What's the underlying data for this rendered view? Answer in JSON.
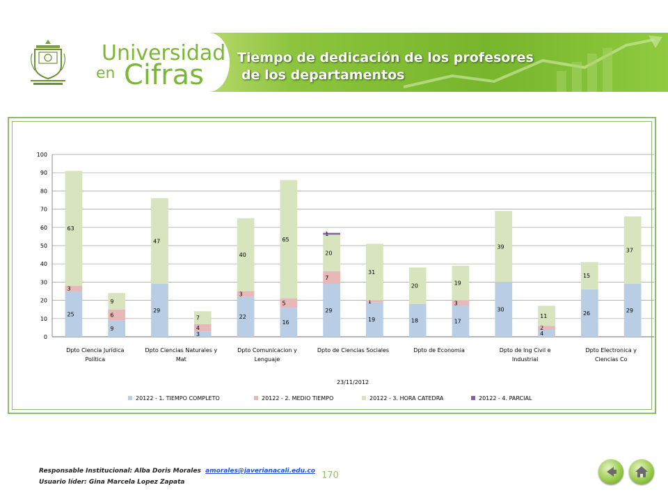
{
  "header": {
    "brand_line1": "Universidad",
    "brand_en": "en",
    "brand_cifras": "Cifras",
    "title_line1": "Tiempo de dedicación de los profesores",
    "title_line2": "de los departamentos"
  },
  "colors": {
    "tiempo_completo": "#b9cde5",
    "medio_tiempo": "#e6b9b8",
    "hora_catedra": "#d7e4bd",
    "parcial": "#8064a2",
    "banner_green": "#7ab833",
    "frame_green": "#8cbc6a"
  },
  "chart_data": {
    "type": "bar",
    "stacked": true,
    "title": "",
    "xlabel": "23/11/2012",
    "ylabel": "",
    "ylim": [
      0,
      100
    ],
    "yticks": [
      0,
      10,
      20,
      30,
      40,
      50,
      60,
      70,
      80,
      90,
      100
    ],
    "grid": true,
    "legend_position": "bottom",
    "category_label_rows": [
      [
        "Dpto Ciencia Jurídica",
        "Política"
      ],
      [
        "Dpto Ciencias Naturales y",
        "Mat"
      ],
      [
        "Dpto Comunicacion y",
        "Lenguaje"
      ],
      [
        "Dpto de Ciencias Sociales"
      ],
      [
        "Dpto de Economia"
      ],
      [
        "Dpto de Ing Civil e",
        "Industrial"
      ],
      [
        "Dpto Electronica y",
        "Ciencias Co"
      ]
    ],
    "series": [
      {
        "name": "20122 - 1. TIEMPO COMPLETO",
        "values": [
          25,
          9,
          29,
          3,
          22,
          16,
          29,
          19,
          18,
          17,
          30,
          4,
          26,
          29
        ]
      },
      {
        "name": "20122 - 2. MEDIO TIEMPO",
        "values": [
          3,
          6,
          null,
          4,
          3,
          5,
          7,
          1,
          null,
          3,
          null,
          2,
          null,
          null
        ]
      },
      {
        "name": "20122 - 3. HORA CATEDRA",
        "values": [
          63,
          9,
          47,
          7,
          40,
          65,
          20,
          31,
          20,
          19,
          39,
          11,
          15,
          37
        ]
      },
      {
        "name": "20122 - 4. PARCIAL",
        "values": [
          null,
          null,
          null,
          null,
          null,
          null,
          1,
          null,
          null,
          null,
          null,
          null,
          null,
          null
        ]
      }
    ]
  },
  "footer": {
    "responsable_label": "Responsable Institucional: Alba Doris Morales",
    "email": "amorales@javerianacali.edu.co",
    "usuario_label": "Usuario líder: Gina Marcela Lopez Zapata",
    "page_number": "170"
  }
}
